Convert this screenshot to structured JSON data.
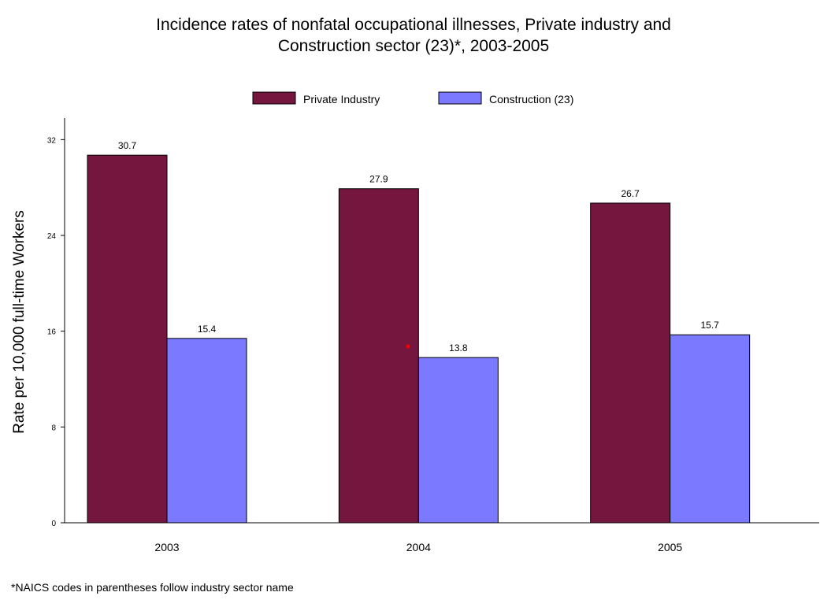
{
  "chart_data": {
    "type": "bar",
    "title_lines": [
      "Incidence rates of nonfatal occupational illnesses, Private industry and",
      "Construction sector (23)*, 2003-2005"
    ],
    "ylabel": "Rate per 10,000 full-time Workers",
    "xlabel": "",
    "categories": [
      "2003",
      "2004",
      "2005"
    ],
    "series": [
      {
        "name": "Private Industry",
        "color": "#75163f",
        "values": [
          30.7,
          27.9,
          26.7
        ]
      },
      {
        "name": "Construction (23)",
        "color": "#7b79ff",
        "values": [
          15.4,
          13.8,
          15.7
        ]
      }
    ],
    "value_labels": [
      [
        "30.7",
        "27.9",
        "26.7"
      ],
      [
        "15.4",
        "13.8",
        "15.7"
      ]
    ],
    "ylim": [
      0,
      33.8
    ],
    "yticks": [
      0,
      8,
      16,
      24,
      32
    ],
    "ytick_labels": [
      "0",
      "8",
      "16",
      "24",
      "32"
    ],
    "legend_position": "top-center",
    "grid": false,
    "annotation_dot_color": "#ff0000"
  },
  "footnote": "*NAICS codes in parentheses follow industry sector name"
}
